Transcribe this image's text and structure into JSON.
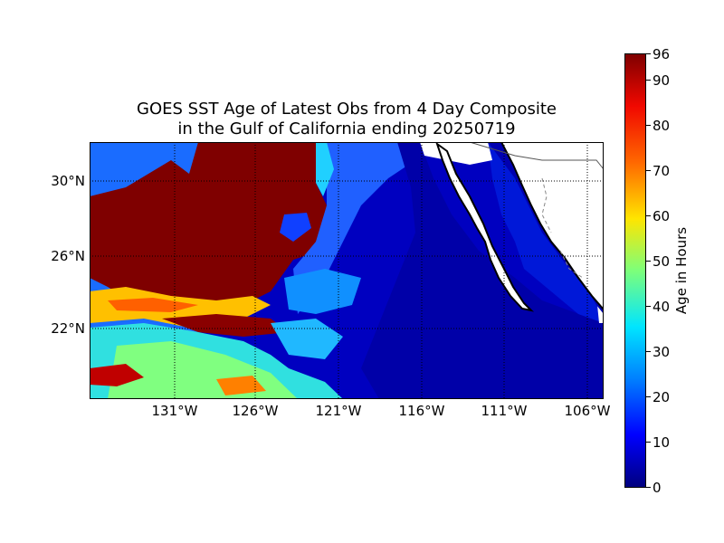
{
  "title_line1": "GOES SST Age of Latest Obs from 4 Day Composite",
  "title_line2": "in the Gulf of California ending 20250719",
  "x_ticks": [
    "131°W",
    "126°W",
    "121°W",
    "116°W",
    "111°W",
    "106°W"
  ],
  "y_ticks": [
    "30°N",
    "26°N",
    "22°N"
  ],
  "colorbar": {
    "label": "Age in Hours",
    "ticks": [
      "0",
      "10",
      "20",
      "30",
      "40",
      "50",
      "60",
      "70",
      "80",
      "90",
      "96"
    ],
    "min": 0,
    "max": 96,
    "colormap": "jet"
  },
  "colors": {
    "land": "#ffffff",
    "coast": "#000000",
    "grid": "#000000",
    "old_data": "#7f0000",
    "recent_data": "#0000c8"
  }
}
